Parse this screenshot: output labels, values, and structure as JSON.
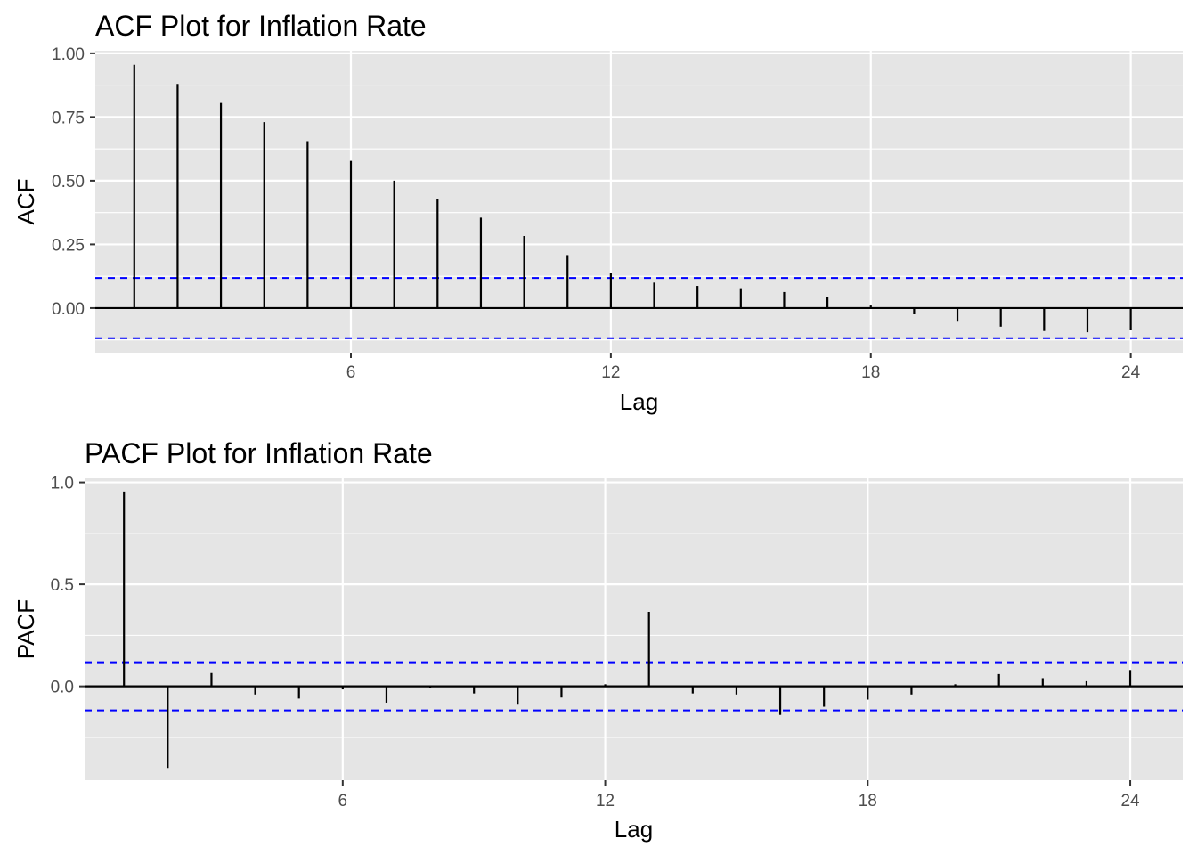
{
  "chart_data": [
    {
      "type": "bar",
      "title": "ACF Plot for Inflation Rate",
      "xlabel": "Lag",
      "ylabel": "ACF",
      "x_ticks": [
        6,
        12,
        18,
        24
      ],
      "y_ticks": [
        0.0,
        0.25,
        0.5,
        0.75,
        1.0
      ],
      "y_tick_labels": [
        "0.00",
        "0.25",
        "0.50",
        "0.75",
        "1.00"
      ],
      "xlim": [
        0.1,
        25.2
      ],
      "ylim": [
        -0.175,
        1.01
      ],
      "conf_limit": 0.118,
      "colors": {
        "spike": "#000000",
        "confidence_band": "#0000ff",
        "panel": "#e5e5e5",
        "grid": "#ffffff"
      },
      "grid": true,
      "lags": [
        1,
        2,
        3,
        4,
        5,
        6,
        7,
        8,
        9,
        10,
        11,
        12,
        13,
        14,
        15,
        16,
        17,
        18,
        19,
        20,
        21,
        22,
        23,
        24
      ],
      "values": [
        0.955,
        0.88,
        0.805,
        0.73,
        0.655,
        0.578,
        0.5,
        0.428,
        0.355,
        0.283,
        0.208,
        0.137,
        0.1,
        0.087,
        0.078,
        0.063,
        0.042,
        0.01,
        -0.023,
        -0.05,
        -0.073,
        -0.09,
        -0.095,
        -0.085
      ]
    },
    {
      "type": "bar",
      "title": "PACF Plot for Inflation Rate",
      "xlabel": "Lag",
      "ylabel": "PACF",
      "x_ticks": [
        6,
        12,
        18,
        24
      ],
      "y_ticks": [
        0.0,
        0.5,
        1.0
      ],
      "y_tick_labels": [
        "0.0",
        "0.5",
        "1.0"
      ],
      "xlim": [
        0.1,
        25.2
      ],
      "ylim": [
        -0.46,
        1.02
      ],
      "conf_limit": 0.118,
      "colors": {
        "spike": "#000000",
        "confidence_band": "#0000ff",
        "panel": "#e5e5e5",
        "grid": "#ffffff"
      },
      "grid": true,
      "lags": [
        1,
        2,
        3,
        4,
        5,
        6,
        7,
        8,
        9,
        10,
        11,
        12,
        13,
        14,
        15,
        16,
        17,
        18,
        19,
        20,
        21,
        22,
        23,
        24
      ],
      "values": [
        0.955,
        -0.4,
        0.065,
        -0.04,
        -0.06,
        -0.015,
        -0.08,
        -0.01,
        -0.035,
        -0.09,
        -0.055,
        0.01,
        0.365,
        -0.035,
        -0.04,
        -0.14,
        -0.1,
        -0.065,
        -0.04,
        0.01,
        0.06,
        0.04,
        0.025,
        0.08
      ]
    }
  ]
}
